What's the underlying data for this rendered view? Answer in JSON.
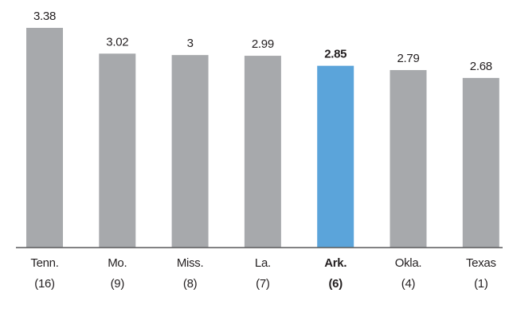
{
  "chart_data": {
    "type": "bar",
    "categories": [
      "Tenn.",
      "Mo.",
      "Miss.",
      "La.",
      "Ark.",
      "Okla.",
      "Texas"
    ],
    "ranks": [
      "(16)",
      "(9)",
      "(8)",
      "(7)",
      "(6)",
      "(4)",
      "(1)"
    ],
    "values": [
      3.38,
      3.02,
      3,
      2.99,
      2.85,
      2.79,
      2.68
    ],
    "color": "#a7a9ac",
    "highlight_color": "#5ba4da",
    "highlight": "Ark.",
    "ylim": [
      0.31,
      3.5
    ]
  }
}
